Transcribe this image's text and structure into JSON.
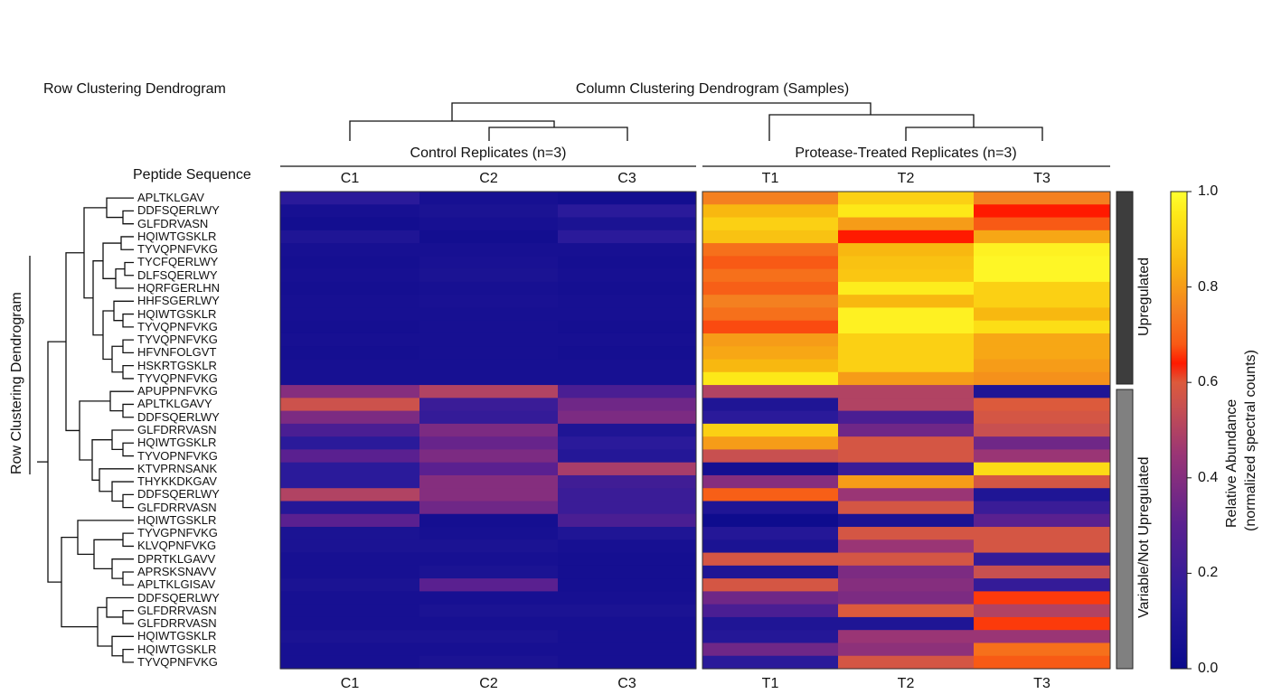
{
  "chart_data": {
    "type": "heatmap",
    "row_dendrogram_title": "Row Clustering Dendrogram",
    "row_dendrogram_side_label": "Row Clustering Dendrogram",
    "column_dendrogram_title": "Column Clustering Dendrogram (Samples)",
    "row_header": "Peptide Sequence",
    "column_groups": [
      {
        "label": "Control Replicates (n=3)",
        "columns": [
          "C1",
          "C2",
          "C3"
        ]
      },
      {
        "label": "Protease-Treated Replicates (n=3)",
        "columns": [
          "T1",
          "T2",
          "T3"
        ]
      }
    ],
    "columns": [
      "C1",
      "C2",
      "C3",
      "T1",
      "T2",
      "T3"
    ],
    "row_groups": [
      {
        "label": "Upregulated",
        "rows": 15,
        "color": "#3d3d3d"
      },
      {
        "label": "Variable/Not Upregulated",
        "rows": 22,
        "color": "#808080"
      }
    ],
    "rows": [
      "APLTKLGAV",
      "DDFSQERLWY",
      "GLFDRVASN",
      "HQIWTGSKLR",
      "TYVQPNFVKG",
      "TYCFQERLWY",
      "DLFSQERLWY",
      "HQRFGERLHN",
      "HHFSGERLWY",
      "HQIWTGSKLR",
      "TYVQPNFVKG",
      "TYVQPNFVKG",
      "HFVNFOLGVT",
      "HSKRTGSKLR",
      "TYVQPNFVKG",
      "APUPPNFVKG",
      "APLTKLGAVY",
      "DDFSQERLWY",
      "GLFDRRVASN",
      "HQIWTGSKLR",
      "TYVOPNFVKG",
      "KTVPRNSANK",
      "THYKKDKGAV",
      "DDFSQERLWY",
      "GLFDRRVASN",
      "HQIWTGSKLR",
      "TYVGPNFVKG",
      "KLVQPNFVKG",
      "DPRTKLGAVV",
      "APRSKSNAVV",
      "APLTKLGISAV",
      "DDFSQERLWY",
      "GLFDRRVASN",
      "GLFDRRVASN",
      "HQIWTGSKLR",
      "HQIWTGSKLR",
      "TYVQPNFVKG"
    ],
    "values": [
      [
        0.15,
        0.06,
        0.04,
        0.75,
        0.9,
        0.75
      ],
      [
        0.06,
        0.08,
        0.15,
        0.85,
        0.95,
        0.64
      ],
      [
        0.04,
        0.06,
        0.08,
        0.9,
        0.8,
        0.68
      ],
      [
        0.1,
        0.04,
        0.15,
        0.87,
        0.64,
        0.82
      ],
      [
        0.06,
        0.06,
        0.06,
        0.72,
        0.85,
        0.97
      ],
      [
        0.05,
        0.07,
        0.05,
        0.68,
        0.87,
        0.98
      ],
      [
        0.06,
        0.08,
        0.06,
        0.72,
        0.88,
        0.98
      ],
      [
        0.05,
        0.06,
        0.05,
        0.69,
        0.96,
        0.9
      ],
      [
        0.06,
        0.07,
        0.06,
        0.75,
        0.85,
        0.9
      ],
      [
        0.06,
        0.06,
        0.06,
        0.72,
        0.97,
        0.85
      ],
      [
        0.05,
        0.06,
        0.05,
        0.67,
        0.97,
        0.93
      ],
      [
        0.06,
        0.06,
        0.06,
        0.8,
        0.9,
        0.82
      ],
      [
        0.05,
        0.06,
        0.05,
        0.82,
        0.9,
        0.82
      ],
      [
        0.06,
        0.06,
        0.06,
        0.85,
        0.9,
        0.8
      ],
      [
        0.06,
        0.06,
        0.06,
        0.95,
        0.8,
        0.78
      ],
      [
        0.4,
        0.5,
        0.25,
        0.5,
        0.5,
        0.1
      ],
      [
        0.56,
        0.2,
        0.35,
        0.1,
        0.5,
        0.6
      ],
      [
        0.38,
        0.18,
        0.38,
        0.15,
        0.25,
        0.58
      ],
      [
        0.25,
        0.38,
        0.1,
        0.9,
        0.35,
        0.55
      ],
      [
        0.15,
        0.33,
        0.15,
        0.8,
        0.58,
        0.35
      ],
      [
        0.3,
        0.38,
        0.12,
        0.55,
        0.58,
        0.45
      ],
      [
        0.15,
        0.3,
        0.48,
        0.05,
        0.2,
        0.92
      ],
      [
        0.15,
        0.4,
        0.22,
        0.4,
        0.8,
        0.58
      ],
      [
        0.5,
        0.4,
        0.2,
        0.69,
        0.45,
        0.1
      ],
      [
        0.12,
        0.35,
        0.2,
        0.1,
        0.58,
        0.2
      ],
      [
        0.3,
        0.05,
        0.25,
        0.02,
        0.08,
        0.3
      ],
      [
        0.08,
        0.06,
        0.1,
        0.12,
        0.58,
        0.58
      ],
      [
        0.08,
        0.08,
        0.06,
        0.08,
        0.45,
        0.58
      ],
      [
        0.06,
        0.06,
        0.05,
        0.58,
        0.58,
        0.18
      ],
      [
        0.06,
        0.08,
        0.05,
        0.1,
        0.38,
        0.55
      ],
      [
        0.08,
        0.3,
        0.05,
        0.58,
        0.4,
        0.18
      ],
      [
        0.06,
        0.06,
        0.06,
        0.35,
        0.38,
        0.66
      ],
      [
        0.06,
        0.08,
        0.08,
        0.25,
        0.6,
        0.5
      ],
      [
        0.06,
        0.06,
        0.06,
        0.1,
        0.1,
        0.66
      ],
      [
        0.08,
        0.08,
        0.06,
        0.12,
        0.45,
        0.45
      ],
      [
        0.06,
        0.06,
        0.06,
        0.35,
        0.42,
        0.72
      ],
      [
        0.06,
        0.08,
        0.06,
        0.15,
        0.58,
        0.68
      ]
    ],
    "colorbar": {
      "label_line1": "Relative Abundance",
      "label_line2": "(normalized spectral counts)",
      "range": [
        0,
        1
      ],
      "ticks": [
        "0.0",
        "0.2",
        "0.4",
        "0.6",
        "0.8",
        "1.0"
      ],
      "colormap": "plasma-like (navy → purple → red → orange → yellow)"
    }
  }
}
